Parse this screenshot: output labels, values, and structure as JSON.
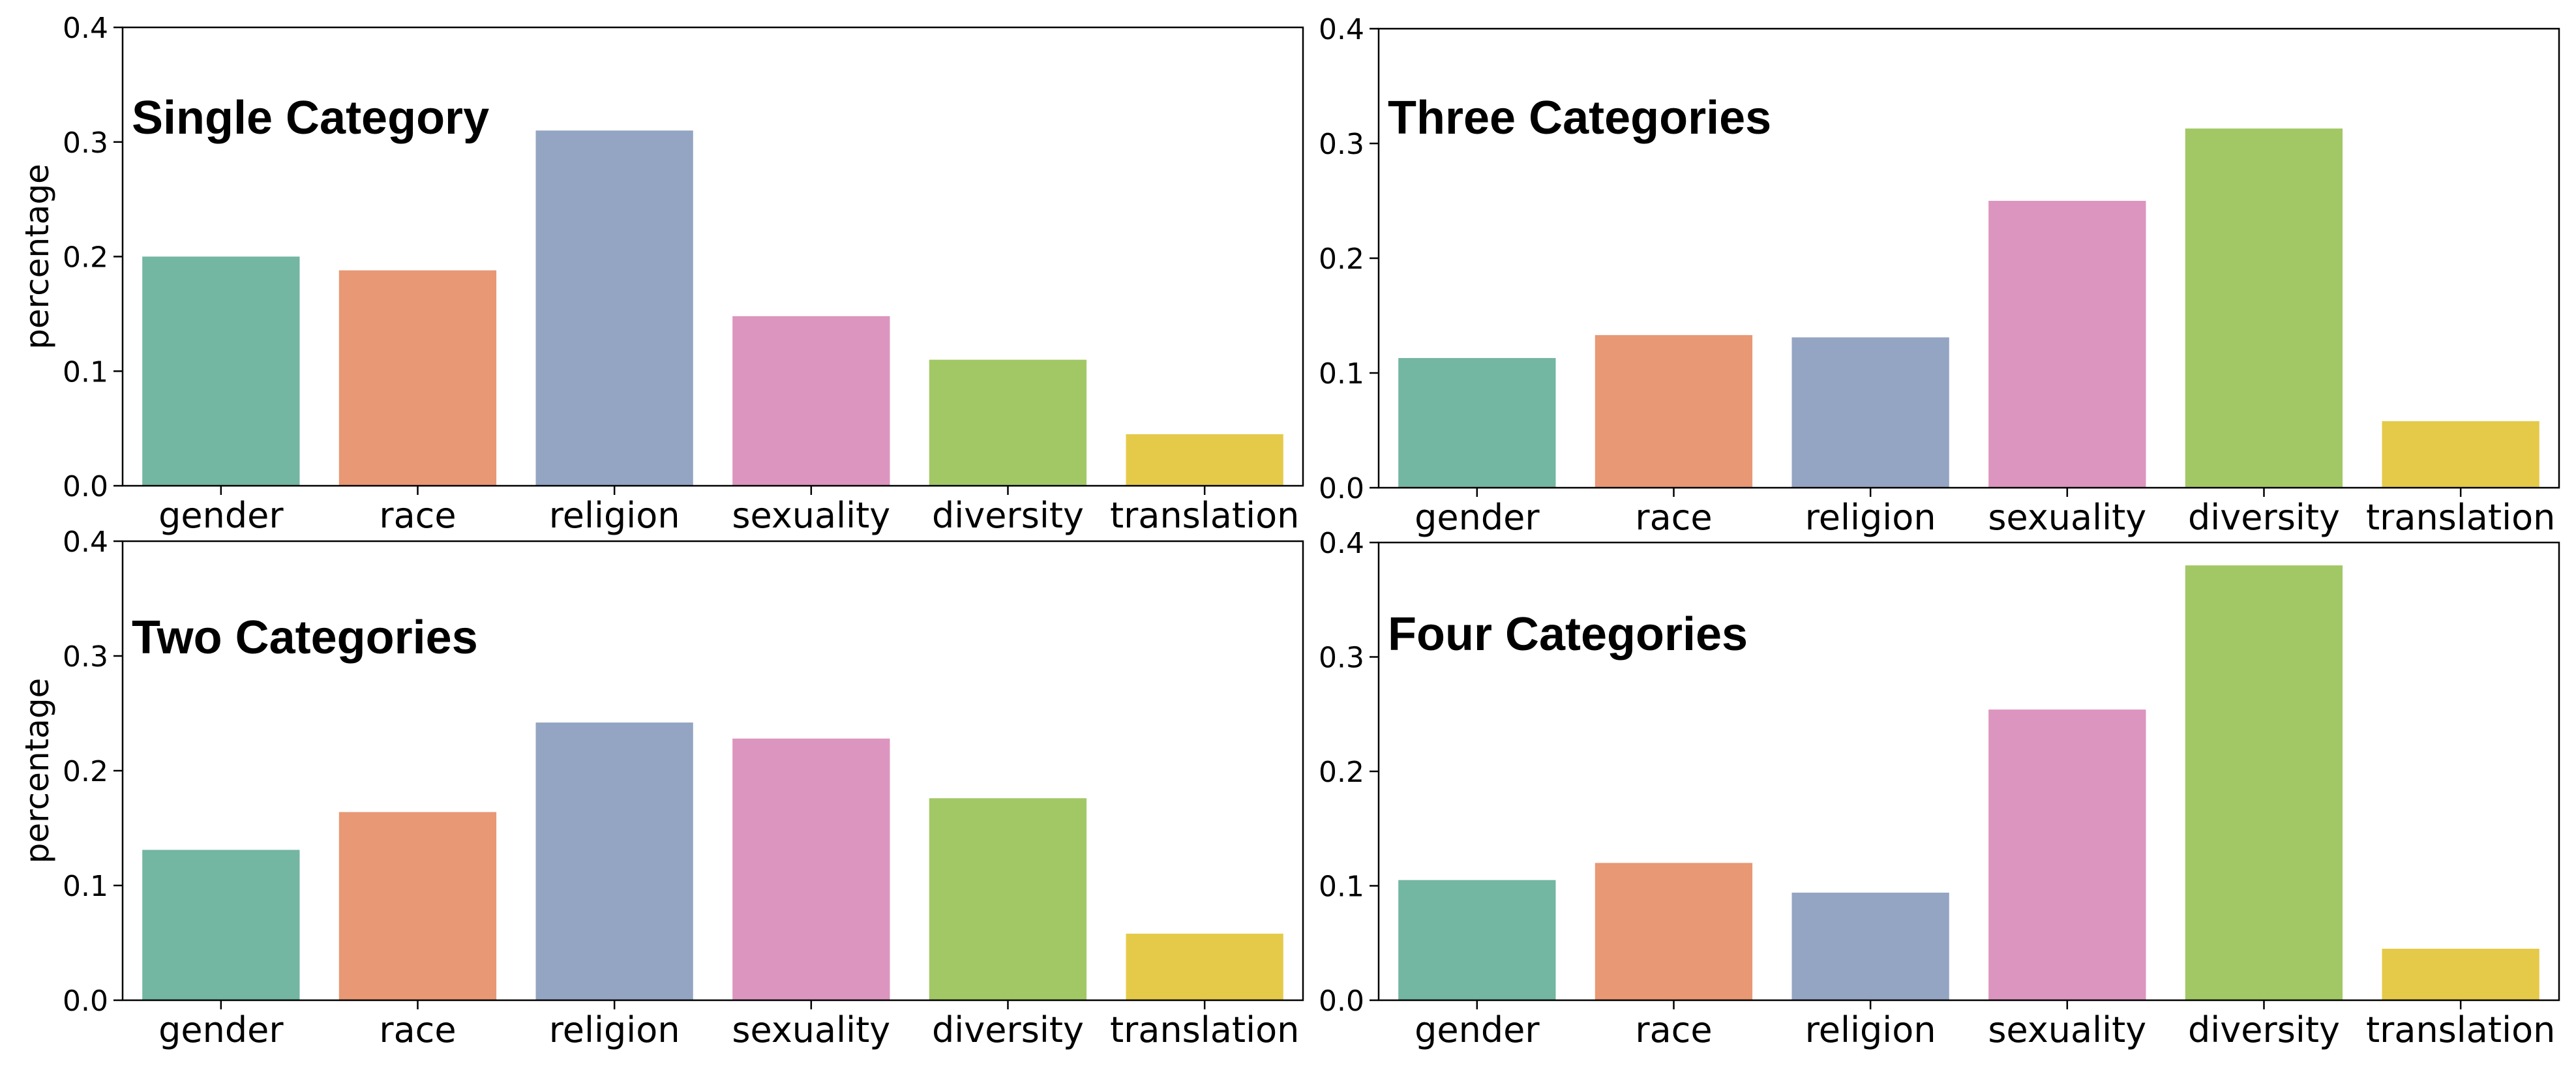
{
  "chart_data": [
    {
      "type": "bar",
      "title": "Single Category",
      "ylabel": "percentage",
      "categories": [
        "gender",
        "race",
        "religion",
        "sexuality",
        "diversity",
        "translation"
      ],
      "values": [
        0.2,
        0.188,
        0.31,
        0.148,
        0.11,
        0.045
      ],
      "ylim": [
        0,
        0.4
      ],
      "yticks": [
        "0.0",
        "0.1",
        "0.2",
        "0.3",
        "0.4"
      ],
      "grid": false
    },
    {
      "type": "bar",
      "title": "Three Categories",
      "ylabel": "",
      "categories": [
        "gender",
        "race",
        "religion",
        "sexuality",
        "diversity",
        "translation"
      ],
      "values": [
        0.113,
        0.133,
        0.131,
        0.25,
        0.313,
        0.058
      ],
      "ylim": [
        0,
        0.4
      ],
      "yticks": [
        "0.0",
        "0.1",
        "0.2",
        "0.3",
        "0.4"
      ],
      "grid": false
    },
    {
      "type": "bar",
      "title": "Two Categories",
      "ylabel": "percentage",
      "categories": [
        "gender",
        "race",
        "religion",
        "sexuality",
        "diversity",
        "translation"
      ],
      "values": [
        0.131,
        0.164,
        0.242,
        0.228,
        0.176,
        0.058
      ],
      "ylim": [
        0,
        0.4
      ],
      "yticks": [
        "0.0",
        "0.1",
        "0.2",
        "0.3",
        "0.4"
      ],
      "grid": false
    },
    {
      "type": "bar",
      "title": "Four Categories",
      "ylabel": "",
      "categories": [
        "gender",
        "race",
        "religion",
        "sexuality",
        "diversity",
        "translation"
      ],
      "values": [
        0.105,
        0.12,
        0.094,
        0.254,
        0.38,
        0.045
      ],
      "ylim": [
        0,
        0.4
      ],
      "yticks": [
        "0.0",
        "0.1",
        "0.2",
        "0.3",
        "0.4"
      ],
      "grid": false
    }
  ],
  "colors": [
    "#73b6a1",
    "#e89874",
    "#94a5c3",
    "#dc95be",
    "#a2c866",
    "#e5ca4a"
  ]
}
